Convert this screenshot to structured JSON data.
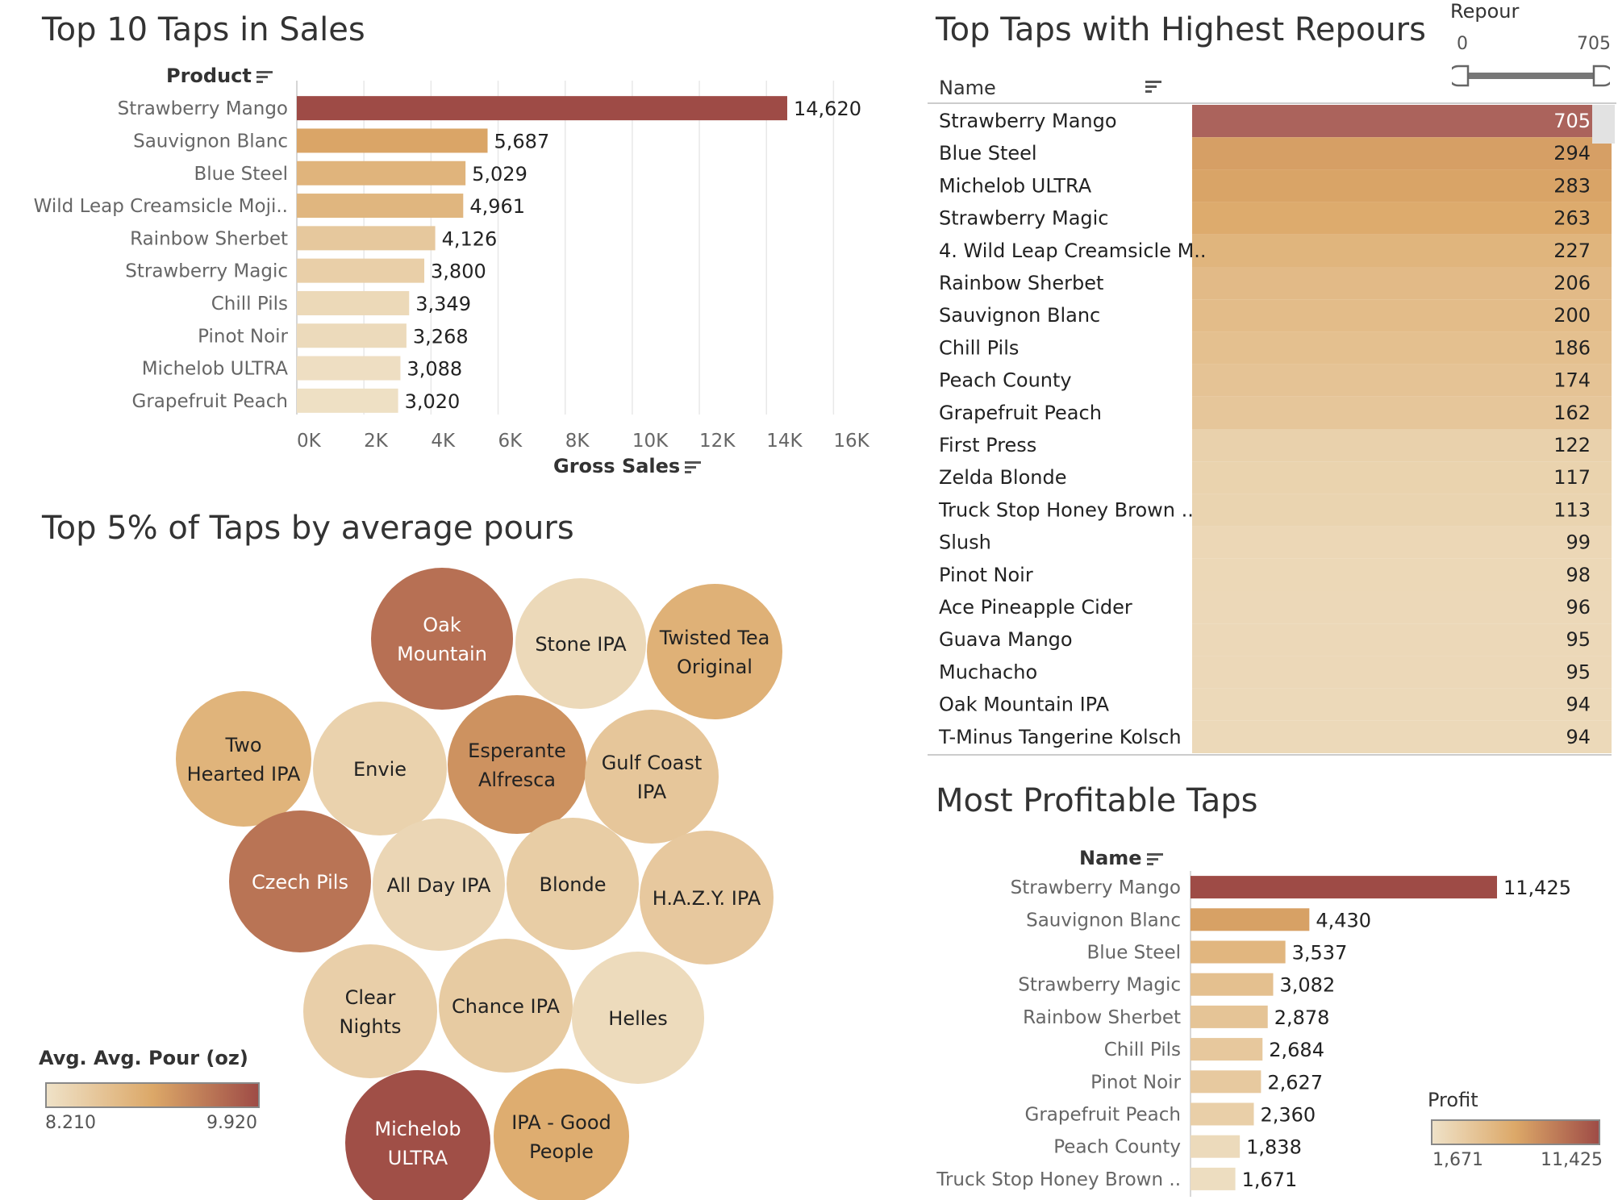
{
  "charts": {
    "sales": {
      "title": "Top 10 Taps in Sales",
      "ylabel": "Product",
      "xlabel": "Gross Sales"
    },
    "repours": {
      "title": "Top Taps with Highest Repours",
      "column_header": "Name",
      "slider_label": "Repour",
      "slider_min": "0",
      "slider_max": "705"
    },
    "pours": {
      "title": "Top 5% of Taps by average pours",
      "legend_title": "Avg. Avg. Pour (oz)",
      "legend_min": "8.210",
      "legend_max": "9.920"
    },
    "profit": {
      "title": "Most Profitable Taps",
      "ylabel": "Name",
      "legend_title": "Profit",
      "legend_min": "1,671",
      "legend_max": "11,425"
    }
  },
  "colors": {
    "light": "#efe2c8",
    "mid": "#dca868",
    "dark": "#9e4b46"
  },
  "chart_data": [
    {
      "type": "bar",
      "title": "Top 10 Taps in Sales",
      "ylabel": "Product",
      "xlabel": "Gross Sales",
      "categories": [
        "Strawberry Mango",
        "Sauvignon Blanc",
        "Blue Steel",
        "Wild Leap Creamsicle Moji..",
        "Rainbow Sherbet",
        "Strawberry Magic",
        "Chill Pils",
        "Pinot Noir",
        "Michelob ULTRA",
        "Grapefruit Peach"
      ],
      "values": [
        14620,
        5687,
        5029,
        4961,
        4126,
        3800,
        3349,
        3268,
        3088,
        3020
      ],
      "labels": [
        "14,620",
        "5,687",
        "5,029",
        "4,961",
        "4,126",
        "3,800",
        "3,349",
        "3,268",
        "3,088",
        "3,020"
      ],
      "xlim": [
        0,
        17000
      ],
      "xticks": [
        "0K",
        "2K",
        "4K",
        "6K",
        "8K",
        "10K",
        "12K",
        "14K",
        "16K"
      ],
      "grid": true
    },
    {
      "type": "table",
      "title": "Top Taps with Highest Repours",
      "column": "Name",
      "names": [
        "Strawberry Mango",
        "Blue Steel",
        "Michelob ULTRA",
        "Strawberry Magic",
        "4. Wild Leap Creamsicle M..",
        "Rainbow Sherbet",
        "Sauvignon Blanc",
        "Chill Pils",
        "Peach County",
        "Grapefruit Peach",
        "First Press",
        "Zelda Blonde",
        "Truck Stop Honey Brown ..",
        "Slush",
        "Pinot Noir",
        "Ace Pineapple Cider",
        "Guava Mango",
        "Muchacho",
        "Oak Mountain IPA",
        "T-Minus Tangerine Kolsch"
      ],
      "values": [
        705,
        294,
        283,
        263,
        227,
        206,
        200,
        186,
        174,
        162,
        122,
        117,
        113,
        99,
        98,
        96,
        95,
        95,
        94,
        94
      ],
      "range": [
        0,
        705
      ]
    },
    {
      "type": "bubble",
      "title": "Top 5% of Taps by average pours",
      "color_legend": "Avg. Avg. Pour (oz)",
      "color_range": [
        8.21,
        9.92
      ],
      "names": [
        "Oak Mountain",
        "Stone IPA",
        "Twisted Tea Original",
        "Two Hearted IPA",
        "Envie",
        "Esperante Alfresca",
        "Gulf Coast IPA",
        "Czech Pils",
        "All Day IPA",
        "Blonde",
        "H.A.Z.Y. IPA",
        "Clear Nights",
        "Chance IPA",
        "Helles",
        "Michelob ULTRA",
        "IPA - Good People"
      ]
    },
    {
      "type": "bar",
      "title": "Most Profitable Taps",
      "ylabel": "Name",
      "categories": [
        "Strawberry Mango",
        "Sauvignon Blanc",
        "Blue Steel",
        "Strawberry Magic",
        "Rainbow Sherbet",
        "Chill Pils",
        "Pinot Noir",
        "Grapefruit Peach",
        "Peach County",
        "Truck Stop Honey Brown .."
      ],
      "values": [
        11425,
        4430,
        3537,
        3082,
        2878,
        2684,
        2627,
        2360,
        1838,
        1671
      ],
      "labels": [
        "11,425",
        "4,430",
        "3,537",
        "3,082",
        "2,878",
        "2,684",
        "2,627",
        "2,360",
        "1,838",
        "1,671"
      ],
      "color_legend": "Profit",
      "color_range": [
        1671,
        11425
      ]
    }
  ]
}
